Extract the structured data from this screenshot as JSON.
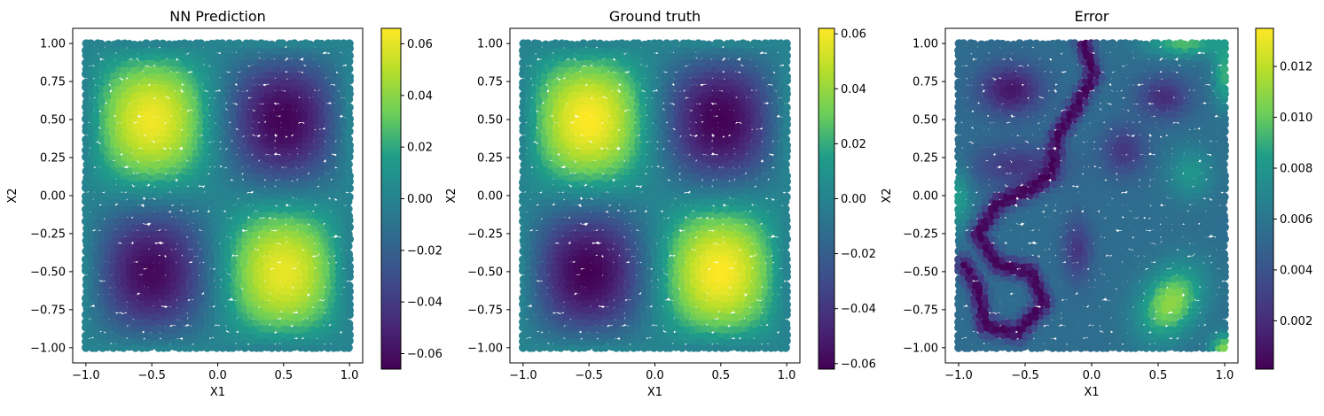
{
  "figure": {
    "colormap": "viridis",
    "colormap_stops": [
      "#440154",
      "#482777",
      "#3f4a8a",
      "#31678e",
      "#26838f",
      "#1f9d8a",
      "#6cce5a",
      "#b6de2b",
      "#fee825"
    ]
  },
  "chart_data": [
    {
      "type": "heatmap",
      "subtype": "scatter-colored",
      "title": "NN Prediction",
      "xlabel": "X1",
      "ylabel": "X2",
      "xlim": [
        -1.1,
        1.1
      ],
      "ylim": [
        -1.1,
        1.1
      ],
      "xticks": [
        -1.0,
        -0.5,
        0.0,
        0.5,
        1.0
      ],
      "yticks": [
        -1.0,
        -0.75,
        -0.5,
        -0.25,
        0.0,
        0.25,
        0.5,
        0.75,
        1.0
      ],
      "xtick_labels": [
        "−1.0",
        "−0.5",
        "0.0",
        "0.5",
        "1.0"
      ],
      "ytick_labels": [
        "−1.00",
        "−0.75",
        "−0.50",
        "−0.25",
        "0.00",
        "0.25",
        "0.50",
        "0.75",
        "1.00"
      ],
      "colorbar": {
        "vmin": -0.066,
        "vmax": 0.066,
        "ticks": [
          -0.06,
          -0.04,
          -0.02,
          0.0,
          0.02,
          0.04,
          0.06
        ],
        "tick_labels": [
          "−0.06",
          "−0.04",
          "−0.02",
          "0.00",
          "0.02",
          "0.04",
          "0.06"
        ]
      },
      "field": "prediction",
      "field_value_range": [
        -0.066,
        0.066
      ],
      "extrema": [
        {
          "x": -0.5,
          "y": 0.5,
          "value": 0.065
        },
        {
          "x": 0.5,
          "y": -0.5,
          "value": 0.055
        },
        {
          "x": 0.5,
          "y": 0.5,
          "value": -0.063
        },
        {
          "x": -0.5,
          "y": -0.5,
          "value": -0.062
        }
      ]
    },
    {
      "type": "heatmap",
      "subtype": "scatter-colored",
      "title": "Ground truth",
      "xlabel": "X1",
      "ylabel": "X2",
      "xlim": [
        -1.1,
        1.1
      ],
      "ylim": [
        -1.1,
        1.1
      ],
      "xticks": [
        -1.0,
        -0.5,
        0.0,
        0.5,
        1.0
      ],
      "yticks": [
        -1.0,
        -0.75,
        -0.5,
        -0.25,
        0.0,
        0.25,
        0.5,
        0.75,
        1.0
      ],
      "xtick_labels": [
        "−1.0",
        "−0.5",
        "0.0",
        "0.5",
        "1.0"
      ],
      "ytick_labels": [
        "−1.00",
        "−0.75",
        "−0.50",
        "−0.25",
        "0.00",
        "0.25",
        "0.50",
        "0.75",
        "1.00"
      ],
      "colorbar": {
        "vmin": -0.062,
        "vmax": 0.062,
        "ticks": [
          -0.06,
          -0.04,
          -0.02,
          0.0,
          0.02,
          0.04,
          0.06
        ],
        "tick_labels": [
          "−0.06",
          "−0.04",
          "−0.02",
          "0.00",
          "0.02",
          "0.04",
          "0.06"
        ]
      },
      "field": "ground_truth",
      "field_value_range": [
        -0.062,
        0.062
      ],
      "extrema": [
        {
          "x": -0.5,
          "y": 0.5,
          "value": 0.062
        },
        {
          "x": 0.5,
          "y": -0.5,
          "value": 0.062
        },
        {
          "x": 0.5,
          "y": 0.5,
          "value": -0.062
        },
        {
          "x": -0.5,
          "y": -0.5,
          "value": -0.062
        }
      ]
    },
    {
      "type": "heatmap",
      "subtype": "scatter-colored",
      "title": "Error",
      "xlabel": "X1",
      "ylabel": "X2",
      "xlim": [
        -1.1,
        1.1
      ],
      "ylim": [
        -1.1,
        1.1
      ],
      "xticks": [
        -1.0,
        -0.5,
        0.0,
        0.5,
        1.0
      ],
      "yticks": [
        -1.0,
        -0.75,
        -0.5,
        -0.25,
        0.0,
        0.25,
        0.5,
        0.75,
        1.0
      ],
      "xtick_labels": [
        "−1.0",
        "−0.5",
        "0.0",
        "0.5",
        "1.0"
      ],
      "ytick_labels": [
        "−1.00",
        "−0.75",
        "−0.50",
        "−0.25",
        "0.00",
        "0.25",
        "0.50",
        "0.75",
        "1.00"
      ],
      "colorbar": {
        "vmin": 0.0001,
        "vmax": 0.0135,
        "ticks": [
          0.002,
          0.004,
          0.006,
          0.008,
          0.01,
          0.012
        ],
        "tick_labels": [
          "0.002",
          "0.004",
          "0.006",
          "0.008",
          "0.010",
          "0.012"
        ]
      },
      "field": "abs_error",
      "field_value_range": [
        0.0001,
        0.0135
      ],
      "extrema": [
        {
          "x": 0.6,
          "y": -0.7,
          "value": 0.0115
        },
        {
          "x": 1.0,
          "y": -1.0,
          "value": 0.0135
        },
        {
          "x": -0.6,
          "y": 0.7,
          "value": 0.001
        },
        {
          "x": 0.55,
          "y": 0.65,
          "value": 0.002
        }
      ]
    }
  ]
}
